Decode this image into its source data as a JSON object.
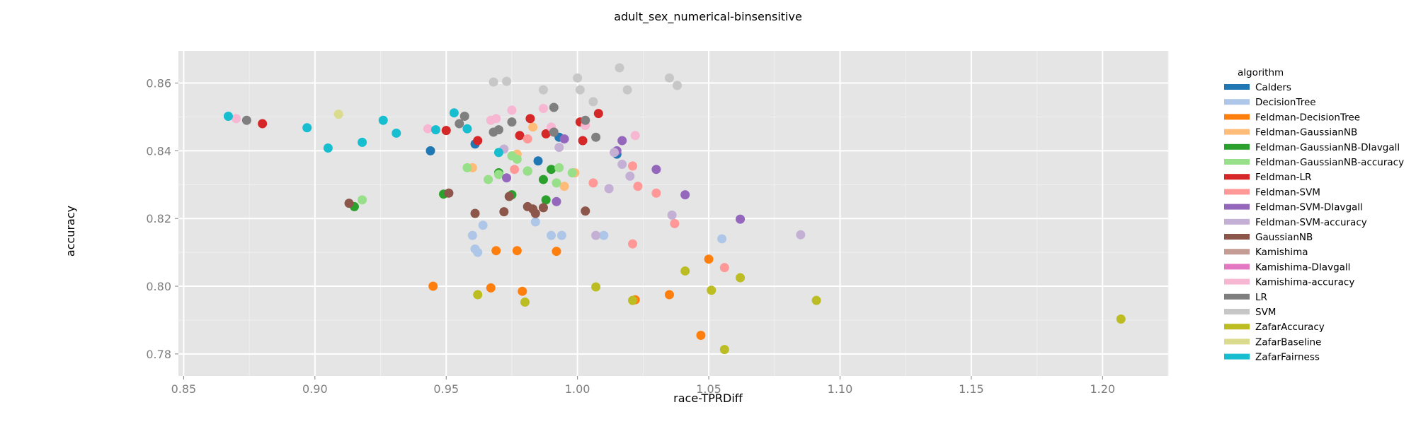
{
  "chart_data": {
    "type": "scatter",
    "title": "adult_sex_numerical-binsensitive",
    "xlabel": "race-TPRDiff",
    "ylabel": "accuracy",
    "xlim": [
      0.848,
      1.225
    ],
    "ylim": [
      0.7735,
      0.8695
    ],
    "xticks": [
      0.85,
      0.9,
      0.95,
      1.0,
      1.05,
      1.1,
      1.15,
      1.2
    ],
    "xtick_labels": [
      "0.85",
      "0.90",
      "0.95",
      "1.00",
      "1.05",
      "1.10",
      "1.15",
      "1.20"
    ],
    "yticks": [
      0.78,
      0.8,
      0.82,
      0.84,
      0.86
    ],
    "ytick_labels": [
      "0.78",
      "0.80",
      "0.82",
      "0.84",
      "0.86"
    ],
    "grid": true,
    "legend_title": "algorithm",
    "legend_position": "right",
    "series": [
      {
        "name": "Calders",
        "color": "#1f77b4",
        "points": [
          [
            0.944,
            0.84
          ],
          [
            0.961,
            0.842
          ],
          [
            0.985,
            0.837
          ],
          [
            0.993,
            0.844
          ],
          [
            1.015,
            0.839
          ]
        ]
      },
      {
        "name": "DecisionTree",
        "color": "#aec7e8",
        "points": [
          [
            0.96,
            0.815
          ],
          [
            0.961,
            0.811
          ],
          [
            0.962,
            0.81
          ],
          [
            0.964,
            0.818
          ],
          [
            0.984,
            0.819
          ],
          [
            0.99,
            0.815
          ],
          [
            0.994,
            0.815
          ],
          [
            1.01,
            0.815
          ],
          [
            1.055,
            0.814
          ]
        ]
      },
      {
        "name": "Feldman-DecisionTree",
        "color": "#ff7f0e",
        "points": [
          [
            0.945,
            0.8
          ],
          [
            0.967,
            0.7995
          ],
          [
            0.969,
            0.8105
          ],
          [
            0.977,
            0.8105
          ],
          [
            0.979,
            0.7985
          ],
          [
            0.992,
            0.8103
          ],
          [
            1.022,
            0.796
          ],
          [
            1.035,
            0.7975
          ],
          [
            1.047,
            0.7855
          ],
          [
            1.05,
            0.808
          ]
        ]
      },
      {
        "name": "Feldman-GaussianNB",
        "color": "#ffbb78",
        "points": [
          [
            0.96,
            0.835
          ],
          [
            0.977,
            0.839
          ],
          [
            0.983,
            0.847
          ],
          [
            0.995,
            0.8295
          ],
          [
            0.999,
            0.8335
          ]
        ]
      },
      {
        "name": "Feldman-GaussianNB-DIavgall",
        "color": "#2ca02c",
        "points": [
          [
            0.915,
            0.8235
          ],
          [
            0.949,
            0.8272
          ],
          [
            0.97,
            0.8335
          ],
          [
            0.975,
            0.827
          ],
          [
            0.981,
            0.834
          ],
          [
            0.987,
            0.8315
          ],
          [
            0.988,
            0.8255
          ],
          [
            0.99,
            0.8345
          ]
        ]
      },
      {
        "name": "Feldman-GaussianNB-accuracy",
        "color": "#98df8a",
        "points": [
          [
            0.918,
            0.8255
          ],
          [
            0.958,
            0.835
          ],
          [
            0.966,
            0.8315
          ],
          [
            0.97,
            0.833
          ],
          [
            0.975,
            0.8385
          ],
          [
            0.977,
            0.8375
          ],
          [
            0.981,
            0.834
          ],
          [
            0.992,
            0.8305
          ],
          [
            0.993,
            0.835
          ],
          [
            0.998,
            0.8335
          ]
        ]
      },
      {
        "name": "Feldman-LR",
        "color": "#d62728",
        "points": [
          [
            0.88,
            0.848
          ],
          [
            0.95,
            0.846
          ],
          [
            0.962,
            0.843
          ],
          [
            0.978,
            0.8445
          ],
          [
            0.982,
            0.8495
          ],
          [
            0.988,
            0.845
          ],
          [
            1.001,
            0.8485
          ],
          [
            1.002,
            0.843
          ],
          [
            1.008,
            0.851
          ]
        ]
      },
      {
        "name": "Feldman-SVM",
        "color": "#ff9896",
        "points": [
          [
            0.976,
            0.8345
          ],
          [
            0.981,
            0.8435
          ],
          [
            1.006,
            0.8305
          ],
          [
            1.021,
            0.8125
          ],
          [
            1.021,
            0.8355
          ],
          [
            1.023,
            0.8295
          ],
          [
            1.03,
            0.8275
          ],
          [
            1.037,
            0.8185
          ],
          [
            1.056,
            0.8055
          ]
        ]
      },
      {
        "name": "Feldman-SVM-DIavgall",
        "color": "#9467bd",
        "points": [
          [
            0.973,
            0.832
          ],
          [
            0.992,
            0.825
          ],
          [
            0.995,
            0.8435
          ],
          [
            1.015,
            0.84
          ],
          [
            1.017,
            0.843
          ],
          [
            1.03,
            0.8345
          ],
          [
            1.041,
            0.827
          ],
          [
            1.062,
            0.8198
          ]
        ]
      },
      {
        "name": "Feldman-SVM-accuracy",
        "color": "#c5b0d5",
        "points": [
          [
            0.972,
            0.8405
          ],
          [
            0.993,
            0.841
          ],
          [
            1.007,
            0.815
          ],
          [
            1.012,
            0.8288
          ],
          [
            1.014,
            0.8395
          ],
          [
            1.017,
            0.836
          ],
          [
            1.02,
            0.8325
          ],
          [
            1.036,
            0.821
          ],
          [
            1.085,
            0.8152
          ]
        ]
      },
      {
        "name": "GaussianNB",
        "color": "#8c564b",
        "points": [
          [
            0.913,
            0.8245
          ],
          [
            0.951,
            0.8275
          ],
          [
            0.961,
            0.8215
          ],
          [
            0.972,
            0.822
          ],
          [
            0.974,
            0.8265
          ],
          [
            0.981,
            0.8235
          ],
          [
            0.983,
            0.8228
          ],
          [
            0.984,
            0.8215
          ],
          [
            0.987,
            0.8232
          ],
          [
            1.003,
            0.8222
          ]
        ]
      },
      {
        "name": "Kamishima",
        "color": "#c49c94",
        "points": []
      },
      {
        "name": "Kamishima-DIavgall",
        "color": "#e377c2",
        "points": []
      },
      {
        "name": "Kamishima-accuracy",
        "color": "#f7b6d2",
        "points": [
          [
            0.87,
            0.8495
          ],
          [
            0.943,
            0.8465
          ],
          [
            0.967,
            0.849
          ],
          [
            0.969,
            0.8495
          ],
          [
            0.975,
            0.852
          ],
          [
            0.987,
            0.8525
          ],
          [
            0.99,
            0.847
          ],
          [
            1.003,
            0.8475
          ],
          [
            1.022,
            0.8445
          ]
        ]
      },
      {
        "name": "LR",
        "color": "#7f7f7f",
        "points": [
          [
            0.874,
            0.849
          ],
          [
            0.955,
            0.848
          ],
          [
            0.957,
            0.8502
          ],
          [
            0.968,
            0.8455
          ],
          [
            0.97,
            0.8462
          ],
          [
            0.975,
            0.8485
          ],
          [
            0.991,
            0.8528
          ],
          [
            0.991,
            0.8455
          ],
          [
            1.003,
            0.849
          ],
          [
            1.007,
            0.844
          ]
        ]
      },
      {
        "name": "SVM",
        "color": "#c7c7c7",
        "points": [
          [
            0.968,
            0.8603
          ],
          [
            0.973,
            0.8605
          ],
          [
            0.987,
            0.858
          ],
          [
            1.0,
            0.8615
          ],
          [
            1.001,
            0.858
          ],
          [
            1.006,
            0.8545
          ],
          [
            1.016,
            0.8645
          ],
          [
            1.019,
            0.858
          ],
          [
            1.035,
            0.8615
          ],
          [
            1.038,
            0.8593
          ]
        ]
      },
      {
        "name": "ZafarAccuracy",
        "color": "#bcbd22",
        "points": [
          [
            0.962,
            0.7975
          ],
          [
            0.98,
            0.7953
          ],
          [
            1.007,
            0.7998
          ],
          [
            1.021,
            0.7958
          ],
          [
            1.041,
            0.8045
          ],
          [
            1.051,
            0.7988
          ],
          [
            1.056,
            0.7813
          ],
          [
            1.062,
            0.8025
          ],
          [
            1.091,
            0.7958
          ],
          [
            1.207,
            0.7903
          ]
        ]
      },
      {
        "name": "ZafarBaseline",
        "color": "#dbdb8d",
        "points": [
          [
            0.909,
            0.8508
          ]
        ]
      },
      {
        "name": "ZafarFairness",
        "color": "#17becf",
        "points": [
          [
            0.867,
            0.8502
          ],
          [
            0.897,
            0.8468
          ],
          [
            0.905,
            0.8408
          ],
          [
            0.918,
            0.8425
          ],
          [
            0.926,
            0.849
          ],
          [
            0.931,
            0.8452
          ],
          [
            0.946,
            0.8462
          ],
          [
            0.953,
            0.8512
          ],
          [
            0.958,
            0.8465
          ],
          [
            0.97,
            0.8395
          ]
        ]
      }
    ]
  }
}
